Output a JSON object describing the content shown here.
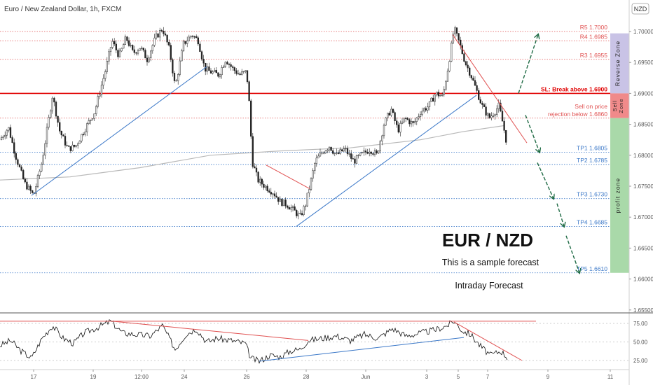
{
  "header": {
    "symbol_title": "Euro / New Zealand Dollar, 1h, FXCM",
    "currency_badge": "NZD"
  },
  "chart_data": {
    "type": "candlestick",
    "title": "EUR / NZD",
    "subtitle": "This is a sample forecast",
    "note": "Intraday Forecast",
    "ylim": [
      1.6525,
      1.7035
    ],
    "y_ticks": [
      "1.70000",
      "1.69500",
      "1.69000",
      "1.68500",
      "1.68000",
      "1.67500",
      "1.67000",
      "1.66500",
      "1.66000",
      "1.65500"
    ],
    "x_ticks": [
      "17",
      "19",
      "12:00",
      "24",
      "26",
      "28",
      "Jun",
      "3",
      "5",
      "7",
      "9",
      "11"
    ],
    "levels": [
      {
        "label": "R5 1.7000",
        "value": 1.7,
        "color": "#e05050"
      },
      {
        "label": "R4 1.6985",
        "value": 1.6985,
        "color": "#e05050"
      },
      {
        "label": "R3 1.6955",
        "value": 1.6955,
        "color": "#e05050"
      },
      {
        "label": "SL: Break above 1.6900",
        "value": 1.69,
        "color": "#e00000"
      },
      {
        "label": "Sell on price",
        "value": 1.6872,
        "color": "#e05050"
      },
      {
        "label": "rejection below 1.6860",
        "value": 1.686,
        "color": "#e05050"
      },
      {
        "label": "TP1 1.6805",
        "value": 1.6805,
        "color": "#3b78c8"
      },
      {
        "label": "TP2 1.6785",
        "value": 1.6785,
        "color": "#3b78c8"
      },
      {
        "label": "TP3 1.6730",
        "value": 1.673,
        "color": "#3b78c8"
      },
      {
        "label": "TP4 1.6685",
        "value": 1.6685,
        "color": "#3b78c8"
      },
      {
        "label": "TP5 1.6610",
        "value": 1.661,
        "color": "#3b78c8"
      }
    ],
    "zones": [
      {
        "label": "Reverse Zone",
        "from": 1.69,
        "to": 1.6997,
        "color": "#c9c3e6"
      },
      {
        "label": "Sell Zone",
        "from": 1.686,
        "to": 1.69,
        "color": "#f08a8a"
      },
      {
        "label": "profit zone",
        "from": 1.661,
        "to": 1.686,
        "color": "#a9d9a9"
      }
    ],
    "price_path": [
      [
        0,
        1.6825
      ],
      [
        12,
        1.6845
      ],
      [
        22,
        1.68
      ],
      [
        35,
        1.6755
      ],
      [
        48,
        1.6735
      ],
      [
        60,
        1.679
      ],
      [
        75,
        1.6897
      ],
      [
        85,
        1.684
      ],
      [
        97,
        1.681
      ],
      [
        108,
        1.6815
      ],
      [
        120,
        1.684
      ],
      [
        135,
        1.687
      ],
      [
        150,
        1.6935
      ],
      [
        160,
        1.6985
      ],
      [
        170,
        1.696
      ],
      [
        180,
        1.699
      ],
      [
        190,
        1.6965
      ],
      [
        200,
        1.6975
      ],
      [
        210,
        1.6955
      ],
      [
        222,
        1.699
      ],
      [
        232,
        1.7005
      ],
      [
        242,
        1.697
      ],
      [
        250,
        1.691
      ],
      [
        262,
        1.698
      ],
      [
        274,
        1.6995
      ],
      [
        283,
        1.6985
      ],
      [
        292,
        1.694
      ],
      [
        300,
        1.6935
      ],
      [
        312,
        1.693
      ],
      [
        322,
        1.6955
      ],
      [
        332,
        1.694
      ],
      [
        342,
        1.693
      ],
      [
        352,
        1.6935
      ],
      [
        356,
        1.688
      ],
      [
        360,
        1.679
      ],
      [
        368,
        1.676
      ],
      [
        378,
        1.675
      ],
      [
        390,
        1.674
      ],
      [
        400,
        1.6725
      ],
      [
        410,
        1.672
      ],
      [
        420,
        1.671
      ],
      [
        428,
        1.67
      ],
      [
        436,
        1.672
      ],
      [
        442,
        1.675
      ],
      [
        450,
        1.679
      ],
      [
        460,
        1.6805
      ],
      [
        470,
        1.6815
      ],
      [
        480,
        1.68
      ],
      [
        492,
        1.681
      ],
      [
        505,
        1.679
      ],
      [
        515,
        1.68
      ],
      [
        528,
        1.681
      ],
      [
        538,
        1.68
      ],
      [
        548,
        1.685
      ],
      [
        558,
        1.6875
      ],
      [
        568,
        1.684
      ],
      [
        578,
        1.686
      ],
      [
        590,
        1.685
      ],
      [
        600,
        1.687
      ],
      [
        612,
        1.688
      ],
      [
        622,
        1.69
      ],
      [
        632,
        1.6895
      ],
      [
        640,
        1.6945
      ],
      [
        648,
        1.7005
      ],
      [
        656,
        1.698
      ],
      [
        664,
        1.695
      ],
      [
        672,
        1.693
      ],
      [
        680,
        1.6905
      ],
      [
        688,
        1.688
      ],
      [
        698,
        1.686
      ],
      [
        706,
        1.687
      ],
      [
        712,
        1.688
      ],
      [
        718,
        1.685
      ],
      [
        724,
        1.6815
      ]
    ],
    "moving_average": [
      [
        0,
        1.676
      ],
      [
        100,
        1.6765
      ],
      [
        200,
        1.678
      ],
      [
        300,
        1.68
      ],
      [
        400,
        1.6807
      ],
      [
        500,
        1.6812
      ],
      [
        600,
        1.6825
      ],
      [
        660,
        1.6838
      ],
      [
        720,
        1.6848
      ]
    ],
    "forecast_arrows": [
      [
        [
          740,
          1.69
        ],
        [
          768,
          1.6995
        ]
      ],
      [
        [
          750,
          1.6865
        ],
        [
          770,
          1.6805
        ]
      ],
      [
        [
          767,
          1.6788
        ],
        [
          790,
          1.673
        ]
      ],
      [
        [
          795,
          1.6722
        ],
        [
          805,
          1.6685
        ]
      ],
      [
        [
          808,
          1.667
        ],
        [
          827,
          1.661
        ]
      ]
    ],
    "trendlines": [
      {
        "color": "#3b78c8",
        "points": [
          [
            45,
            1.6735
          ],
          [
            295,
            1.6943
          ]
        ]
      },
      {
        "color": "#3b78c8",
        "points": [
          [
            423,
            1.6685
          ],
          [
            680,
            1.6897
          ]
        ]
      },
      {
        "color": "#e05050",
        "points": [
          [
            380,
            1.6784
          ],
          [
            442,
            1.6746
          ]
        ]
      },
      {
        "color": "#e05050",
        "points": [
          [
            646,
            1.6995
          ],
          [
            752,
            1.682
          ]
        ]
      }
    ],
    "rsi": {
      "y_ticks": [
        75.0,
        50.0,
        25.0
      ],
      "ylim": [
        15,
        85
      ],
      "values": [
        [
          0,
          45
        ],
        [
          15,
          52
        ],
        [
          30,
          38
        ],
        [
          45,
          28
        ],
        [
          60,
          55
        ],
        [
          75,
          72
        ],
        [
          90,
          55
        ],
        [
          105,
          48
        ],
        [
          120,
          62
        ],
        [
          140,
          70
        ],
        [
          158,
          78
        ],
        [
          175,
          62
        ],
        [
          195,
          60
        ],
        [
          215,
          58
        ],
        [
          232,
          72
        ],
        [
          250,
          40
        ],
        [
          265,
          60
        ],
        [
          280,
          68
        ],
        [
          295,
          50
        ],
        [
          310,
          55
        ],
        [
          330,
          52
        ],
        [
          350,
          48
        ],
        [
          358,
          28
        ],
        [
          370,
          24
        ],
        [
          385,
          32
        ],
        [
          400,
          30
        ],
        [
          415,
          38
        ],
        [
          428,
          40
        ],
        [
          440,
          52
        ],
        [
          460,
          55
        ],
        [
          480,
          58
        ],
        [
          500,
          52
        ],
        [
          520,
          60
        ],
        [
          540,
          55
        ],
        [
          560,
          68
        ],
        [
          580,
          58
        ],
        [
          600,
          62
        ],
        [
          620,
          66
        ],
        [
          638,
          72
        ],
        [
          648,
          78
        ],
        [
          660,
          65
        ],
        [
          672,
          60
        ],
        [
          685,
          45
        ],
        [
          700,
          32
        ],
        [
          715,
          38
        ],
        [
          725,
          28
        ]
      ],
      "lines": [
        {
          "color": "#e05050",
          "points": [
            [
              0,
              78
            ],
            [
              765,
              78
            ]
          ]
        },
        {
          "color": "#e05050",
          "points": [
            [
              160,
              78
            ],
            [
              440,
              52
            ]
          ]
        },
        {
          "color": "#3b78c8",
          "points": [
            [
              370,
              24
            ],
            [
              662,
              56
            ]
          ]
        },
        {
          "color": "#e05050",
          "points": [
            [
              648,
              77
            ],
            [
              745,
              25
            ]
          ]
        }
      ]
    }
  }
}
